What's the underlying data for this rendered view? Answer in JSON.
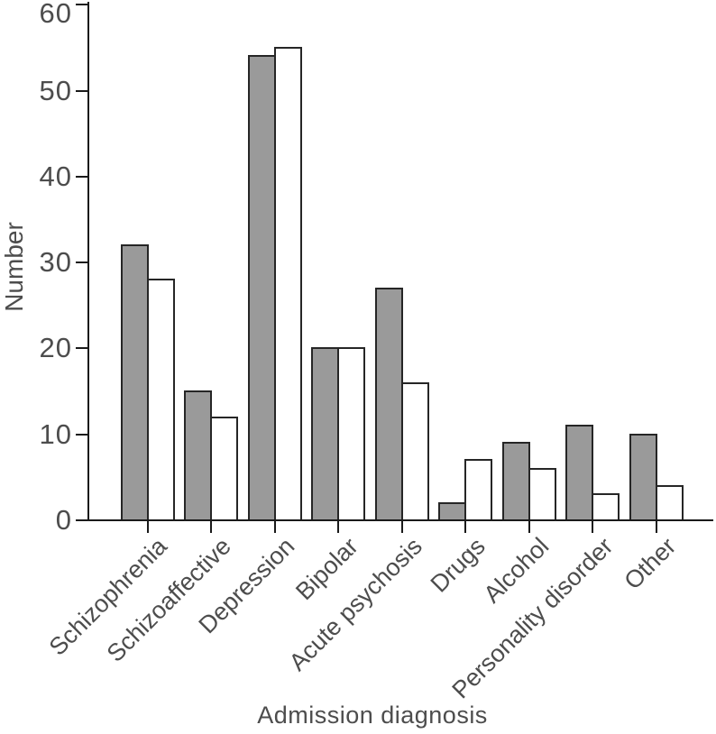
{
  "chart_data": {
    "type": "bar",
    "title": "",
    "xlabel": "Admission diagnosis",
    "ylabel": "Number",
    "categories": [
      "Schizophrenia",
      "Schizoaffective",
      "Depression",
      "Bipolar",
      "Acute psychosis",
      "Drugs",
      "Alcohol",
      "Personality disorder",
      "Other"
    ],
    "series": [
      {
        "name": "gray",
        "fill": "#9a9a9a",
        "values": [
          32,
          15,
          54,
          20,
          27,
          2,
          9,
          11,
          10
        ]
      },
      {
        "name": "white",
        "fill": "#ffffff",
        "values": [
          28,
          12,
          55,
          20,
          16,
          7,
          6,
          3,
          4
        ]
      }
    ],
    "ylim": [
      0,
      60
    ],
    "yticks": [
      0,
      10,
      20,
      30,
      40,
      50,
      60
    ],
    "grid": false,
    "legend": null,
    "colors": {
      "axis": "#1a1a1a",
      "bar_outline": "#262626",
      "text": "#4d4d4d"
    }
  }
}
